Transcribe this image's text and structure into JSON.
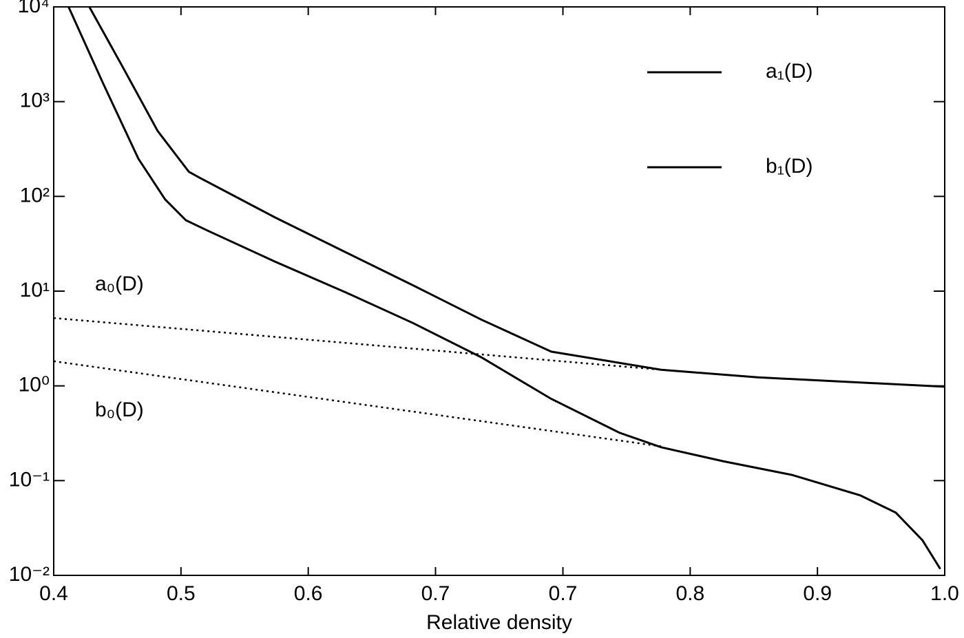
{
  "chart_data": {
    "type": "line",
    "x_label": "Relative density",
    "log_y": true,
    "xlim": [
      0.4,
      1.0
    ],
    "ylim": [
      0.01,
      10000
    ],
    "xticks": [
      {
        "value": 0.4,
        "label": "0.4"
      },
      {
        "value": 0.4857,
        "label": "0.5"
      },
      {
        "value": 0.5714,
        "label": "0.6"
      },
      {
        "value": 0.6571,
        "label": "0.7"
      },
      {
        "value": 0.7429,
        "label": "0.7"
      },
      {
        "value": 0.8286,
        "label": "0.8"
      },
      {
        "value": 0.9143,
        "label": "0.9"
      },
      {
        "value": 1.0,
        "label": "1.0"
      }
    ],
    "yticks": [
      {
        "value": 0.01,
        "label": "10⁻²"
      },
      {
        "value": 0.1,
        "label": "10⁻¹"
      },
      {
        "value": 1,
        "label": "10⁰"
      },
      {
        "value": 10,
        "label": "10¹"
      },
      {
        "value": 100,
        "label": "10²"
      },
      {
        "value": 1000,
        "label": "10³"
      },
      {
        "value": 10000,
        "label": "10⁴"
      }
    ],
    "series": [
      {
        "name": "a₁(D)",
        "color": "#000000",
        "dash": "solid",
        "legend": true,
        "x": [
          0.424,
          0.447,
          0.47,
          0.491,
          0.498,
          0.549,
          0.596,
          0.642,
          0.688,
          0.735,
          0.809,
          0.874,
          1.0
        ],
        "values": [
          10000,
          2240,
          490,
          182,
          158,
          60,
          26,
          11.5,
          5.0,
          2.3,
          1.48,
          1.23,
          0.98
        ]
      },
      {
        "name": "b₁(D)",
        "color": "#000000",
        "dash": "solid",
        "legend": true,
        "x": [
          0.41,
          0.433,
          0.457,
          0.475,
          0.489,
          0.503,
          0.549,
          0.596,
          0.642,
          0.688,
          0.735,
          0.781,
          0.809,
          0.851,
          0.897,
          0.943,
          0.967,
          0.985,
          0.997
        ],
        "values": [
          10000,
          1590,
          250,
          93,
          56,
          44,
          20.5,
          9.8,
          4.6,
          2.0,
          0.73,
          0.32,
          0.225,
          0.16,
          0.115,
          0.07,
          0.046,
          0.0235,
          0.0117
        ]
      },
      {
        "name": "a₀(D)",
        "color": "#000000",
        "dash": "dotted",
        "legend": false,
        "x": [
          0.4,
          0.809
        ],
        "values": [
          5.2,
          1.48
        ]
      },
      {
        "name": "b₀(D)",
        "color": "#000000",
        "dash": "dotted",
        "legend": false,
        "x": [
          0.4,
          0.809
        ],
        "values": [
          1.82,
          0.23
        ]
      }
    ]
  }
}
